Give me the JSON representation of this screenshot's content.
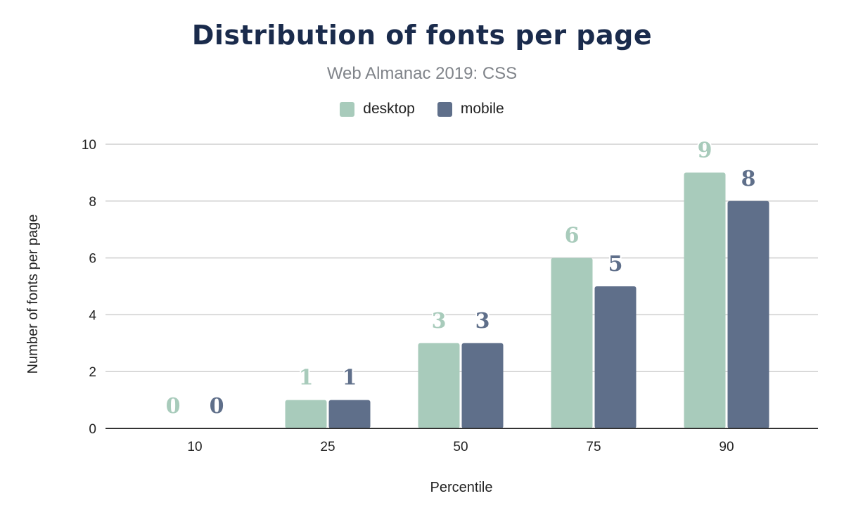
{
  "chart_data": {
    "type": "bar",
    "title": "Distribution of fonts per page",
    "subtitle": "Web Almanac 2019: CSS",
    "xlabel": "Percentile",
    "ylabel": "Number of fonts per page",
    "categories": [
      "10",
      "25",
      "50",
      "75",
      "90"
    ],
    "series": [
      {
        "name": "desktop",
        "values": [
          0,
          1,
          3,
          6,
          9
        ],
        "color": "#a8cbbb"
      },
      {
        "name": "mobile",
        "values": [
          0,
          1,
          3,
          5,
          8
        ],
        "color": "#5f6f8a"
      }
    ],
    "ylim": [
      0,
      10
    ],
    "yticks": [
      "0",
      "2",
      "4",
      "6",
      "8",
      "10"
    ],
    "grid": true,
    "legend_position": "top"
  }
}
